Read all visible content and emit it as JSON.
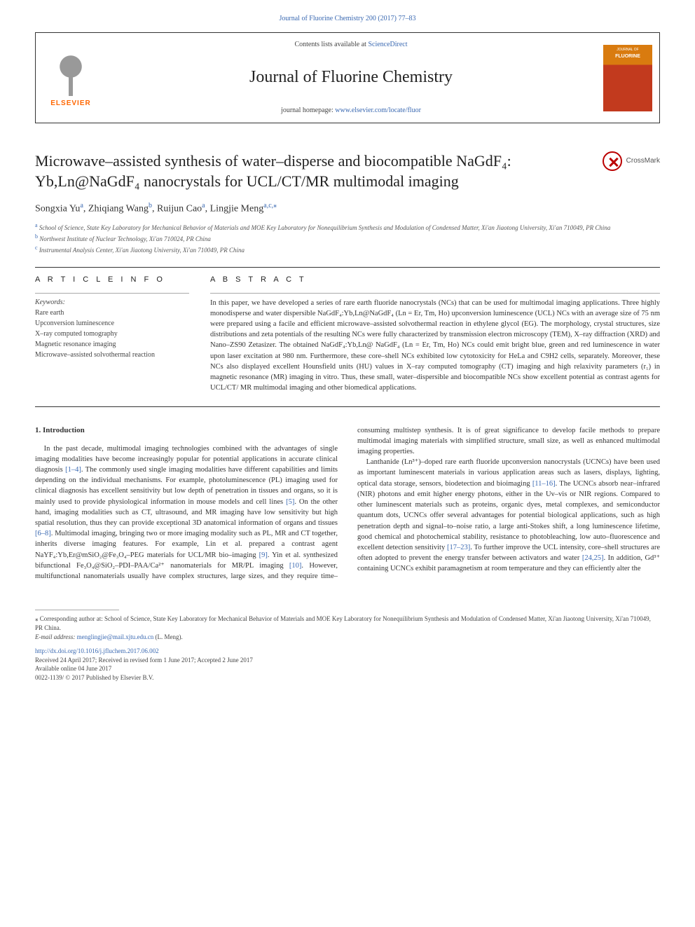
{
  "top_citation": {
    "text": "Journal of Fluorine Chemistry 200 (2017) 77–83",
    "href": "#"
  },
  "header": {
    "contents_prefix": "Contents lists available at ",
    "contents_link": "ScienceDirect",
    "journal_name": "Journal of Fluorine Chemistry",
    "homepage_prefix": "journal homepage: ",
    "homepage_link": "www.elsevier.com/locate/fluor",
    "elsevier_brand": "ELSEVIER"
  },
  "crossmark_label": "CrossMark",
  "title": "Microwave–assisted synthesis of water–disperse and biocompatible NaGdF₄: Yb,Ln@NaGdF₄ nanocrystals for UCL/CT/MR multimodal imaging",
  "authors_html": "Songxia Yu<sup><a href='#'>a</a></sup>, Zhiqiang Wang<sup><a href='#'>b</a></sup>, Ruijun Cao<sup><a href='#'>a</a></sup>, Lingjie Meng<sup><a href='#'>a</a>,<a href='#'>c</a>,</sup><sup>⁎</sup>",
  "affiliations": [
    {
      "sup": "a",
      "text": "School of Science, State Key Laboratory for Mechanical Behavior of Materials and MOE Key Laboratory for Nonequilibrium Synthesis and Modulation of Condensed Matter, Xi'an Jiaotong University, Xi'an 710049, PR China"
    },
    {
      "sup": "b",
      "text": "Northwest Institute of Nuclear Technology, Xi'an 710024, PR China"
    },
    {
      "sup": "c",
      "text": "Instrumental Analysis Center, Xi'an Jiaotong University, Xi'an 710049, PR China"
    }
  ],
  "article_info": {
    "heading": "A R T I C L E  I N F O",
    "keywords_label": "Keywords:",
    "keywords": [
      "Rare earth",
      "Upconversion luminescence",
      "X–ray computed tomography",
      "Magnetic resonance imaging",
      "Microwave–assisted solvothermal reaction"
    ]
  },
  "abstract": {
    "heading": "A B S T R A C T",
    "text": "In this paper, we have developed a series of rare earth fluoride nanocrystals (NCs) that can be used for multimodal imaging applications. Three highly monodisperse and water dispersible NaGdF₄:Yb,Ln@NaGdF₄ (Ln = Er, Tm, Ho) upconversion luminescence (UCL) NCs with an average size of 75 nm were prepared using a facile and efficient microwave–assisted solvothermal reaction in ethylene glycol (EG). The morphology, crystal structures, size distributions and zeta potentials of the resulting NCs were fully characterized by transmission electron microscopy (TEM), X–ray diffraction (XRD) and Nano–ZS90 Zetasizer. The obtained NaGdF₄:Yb,Ln@ NaGdF₄ (Ln = Er, Tm, Ho) NCs could emit bright blue, green and red luminescence in water upon laser excitation at 980 nm. Furthermore, these core–shell NCs exhibited low cytotoxicity for HeLa and C9H2 cells, separately. Moreover, these NCs also displayed excellent Hounsfield units (HU) values in X–ray computed tomography (CT) imaging and high relaxivity parameters (r₁) in magnetic resonance (MR) imaging in vitro. Thus, these small, water–dispersible and biocompatible NCs show excellent potential as contrast agents for UCL/CT/ MR multimodal imaging and other biomedical applications."
  },
  "section1": {
    "heading": "1. Introduction",
    "p1_a": "In the past decade, multimodal imaging technologies combined with the advantages of single imaging modalities have become increasingly popular for potential applications in accurate clinical diagnosis ",
    "ref1": "[1–4]",
    "p1_b": ". The commonly used single imaging modalities have different capabilities and limits depending on the individual mechanisms. For example, photoluminescence (PL) imaging used for clinical diagnosis has excellent sensitivity but low depth of penetration in tissues and organs, so it is mainly used to provide physiological information in mouse models and cell lines ",
    "ref2": "[5]",
    "p1_c": ". On the other hand, imaging modalities such as CT, ultrasound, and MR imaging have low sensitivity but high spatial resolution, thus they can provide exceptional 3D anatomical information of organs and tissues ",
    "ref3": "[6–8]",
    "p1_d": ". Multimodal imaging, bringing two or more imaging modality such as PL, MR and CT together, inherits diverse imaging features. For example, Lin et al. prepared a contrast agent NaYF₄:Yb,Er@mSiO₂@Fe₃O₄–PEG materials for UCL/MR bio–imaging ",
    "ref4": "[9]",
    "p1_e": ". Yin et al. synthesized bifunctional Fe₃O₄@SiO₂–PDI–PAA/Ca²⁺ nanomaterials for MR/PL imaging ",
    "ref5": "[10]",
    "p1_f": ". However, multifunctional nanomaterials usually have complex structures, large sizes, and they require time–consuming multistep synthesis. It is of great significance to develop facile methods to prepare multimodal imaging materials with simplified structure, small size, as well as enhanced multimodal imaging properties.",
    "p2_a": "Lanthanide (Ln³⁺)–doped rare earth fluoride upconversion nanocrystals (UCNCs) have been used as important luminescent materials in various application areas such as lasers, displays, lighting, optical data storage, sensors, biodetection and bioimaging ",
    "ref6": "[11–16]",
    "p2_b": ". The UCNCs absorb near–infrared (NIR) photons and emit higher energy photons, either in the Uv–vis or NIR regions. Compared to other luminescent materials such as proteins, organic dyes, metal complexes, and semiconductor quantum dots, UCNCs offer several advantages for potential biological applications, such as high penetration depth and signal–to–noise ratio, a large anti-Stokes shift, a long luminescence lifetime, good chemical and photochemical stability, resistance to photobleaching, low auto–fluorescence and excellent detection sensitivity ",
    "ref7": "[17–23]",
    "p2_c": ". To further improve the UCL intensity, core–shell structures are often adopted to prevent the energy transfer between activators and water ",
    "ref8": "[24,25]",
    "p2_d": ". In addition, Gd³⁺ containing UCNCs exhibit paramagnetism at room temperature and they can efficiently alter the"
  },
  "footnote": {
    "corr": "⁎ Corresponding author at: School of Science, State Key Laboratory for Mechanical Behavior of Materials and MOE Key Laboratory for Nonequilibrium Synthesis and Modulation of Condensed Matter, Xi'an Jiaotong University, Xi'an 710049, PR China.",
    "email_label": "E-mail address: ",
    "email": "menglingjie@mail.xjtu.edu.cn",
    "email_person": " (L. Meng).",
    "doi": "http://dx.doi.org/10.1016/j.jfluchem.2017.06.002",
    "received": "Received 24 April 2017; Received in revised form 1 June 2017; Accepted 2 June 2017",
    "online": "Available online 04 June 2017",
    "copyright": "0022-1139/ © 2017 Published by Elsevier B.V."
  },
  "colors": {
    "link": "#3968b1",
    "text": "#333333",
    "accent_orange": "#ff6600",
    "crossmark_ring": "#b00000"
  }
}
